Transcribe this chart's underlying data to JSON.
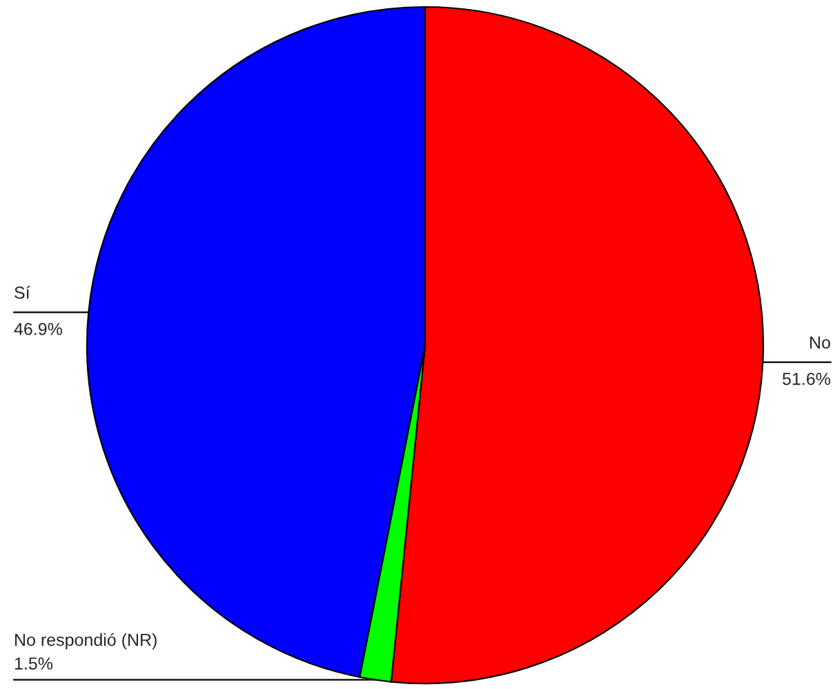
{
  "chart_data": {
    "type": "pie",
    "categories": [
      "No",
      "No respondió (NR)",
      "Sí"
    ],
    "values": [
      51.6,
      1.5,
      46.9
    ],
    "value_labels": [
      "51.6%",
      "1.5%",
      "46.9%"
    ],
    "colors": [
      "#ff0000",
      "#00ff00",
      "#0000ff"
    ],
    "legend": false
  }
}
